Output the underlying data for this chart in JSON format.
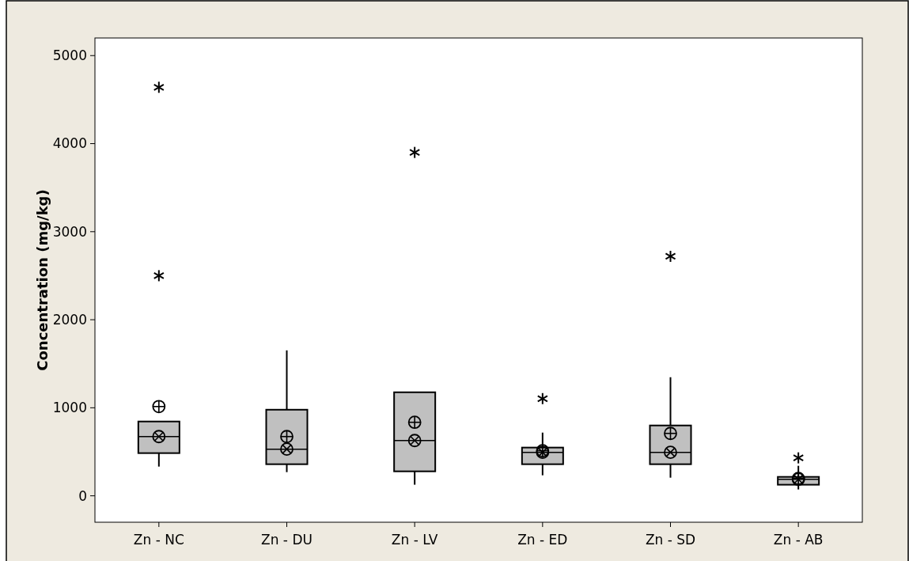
{
  "chart_data": {
    "type": "box",
    "ylabel": "Concentration (mg/kg)",
    "categories": [
      "Zn - NC",
      "Zn - DU",
      "Zn - LV",
      "Zn - ED",
      "Zn - SD",
      "Zn - AB"
    ],
    "color": "#c0c0c0",
    "ylim": [
      -300,
      5200
    ],
    "yticks": [
      0,
      1000,
      2000,
      3000,
      4000,
      5000
    ],
    "grid": false,
    "boxes": [
      {
        "low": 332,
        "q1": 485,
        "median": 673,
        "q3": 844,
        "high": 850,
        "mean": 1014,
        "outliers": [
          2500,
          4640
        ]
      },
      {
        "low": 269,
        "q1": 359,
        "median": 530,
        "q3": 978,
        "high": 1652,
        "mean": 673
      },
      {
        "low": 126,
        "q1": 278,
        "median": 628,
        "q3": 1176,
        "high": 1180,
        "mean": 835,
        "outliers": [
          3900
        ]
      },
      {
        "low": 233,
        "q1": 359,
        "median": 494,
        "q3": 548,
        "high": 718,
        "mean": 512,
        "outliers": [
          1104
        ]
      },
      {
        "low": 206,
        "q1": 359,
        "median": 494,
        "q3": 799,
        "high": 1347,
        "mean": 709,
        "outliers": [
          2720
        ]
      },
      {
        "low": 72,
        "q1": 126,
        "median": 188,
        "q3": 215,
        "high": 341,
        "mean": 197,
        "outliers": [
          431
        ]
      }
    ]
  }
}
